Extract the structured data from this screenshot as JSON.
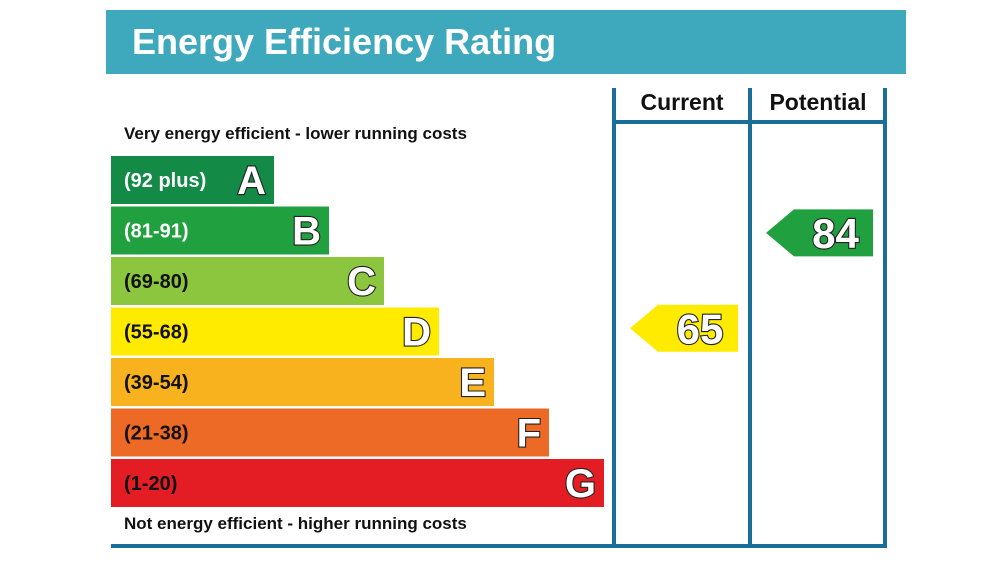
{
  "title": "Energy Efficiency Rating",
  "columns": {
    "current": "Current",
    "potential": "Potential"
  },
  "top_note": "Very energy efficient - lower running costs",
  "bottom_note": "Not energy efficient - higher running costs",
  "colors": {
    "header": "#3ea8bd",
    "frame": "#1a6f9a"
  },
  "chart_data": {
    "type": "bar",
    "bands": [
      {
        "letter": "A",
        "range": "(92 plus)",
        "color": "#138a46"
      },
      {
        "letter": "B",
        "range": "(81-91)",
        "color": "#21a040"
      },
      {
        "letter": "C",
        "range": "(69-80)",
        "color": "#8cc63f"
      },
      {
        "letter": "D",
        "range": "(55-68)",
        "color": "#ffeb00"
      },
      {
        "letter": "E",
        "range": "(39-54)",
        "color": "#f7b21e"
      },
      {
        "letter": "F",
        "range": "(21-38)",
        "color": "#ec6a25"
      },
      {
        "letter": "G",
        "range": "(1-20)",
        "color": "#e31d23"
      }
    ],
    "current": {
      "value": 65,
      "band": "D",
      "color": "#ffeb00"
    },
    "potential": {
      "value": 84,
      "band": "B",
      "color": "#21a040"
    }
  }
}
